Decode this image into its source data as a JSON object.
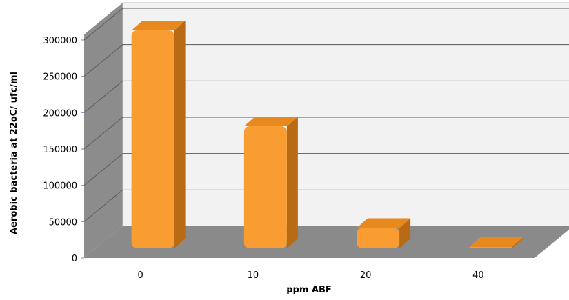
{
  "chart_data": {
    "type": "bar",
    "title": "",
    "xlabel": "ppm ABF",
    "ylabel": "Aerobic bacteria at 22oC/ ufc/ml",
    "categories": [
      "0",
      "10",
      "20",
      "40"
    ],
    "values": [
      300000,
      168000,
      28000,
      1000
    ],
    "ylim": [
      0,
      300000
    ],
    "y_ticks": [
      0,
      50000,
      100000,
      150000,
      200000,
      250000,
      300000
    ],
    "grid": true,
    "legend": "none",
    "colors": {
      "bar_front": "#f99d33",
      "bar_side": "#b86b14",
      "bar_top": "#e8891f",
      "back_wall": "#f2f2f2",
      "side_wall": "#8c8c8c",
      "floor": "#8a8a8a",
      "grid_line": "#5a5a5a",
      "axis_tick": "#6b8fc7"
    }
  }
}
